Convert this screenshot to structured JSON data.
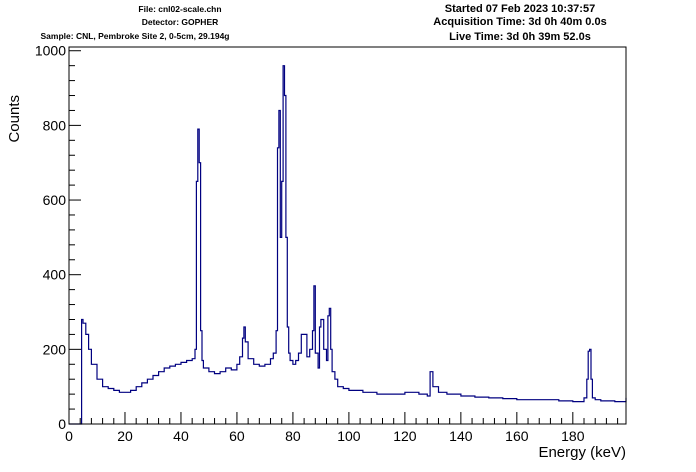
{
  "header": {
    "file": "File: cnl02-scale.chn",
    "detector": "Detector: GOPHER",
    "sample": "Sample: CNL, Pembroke Site 2, 0-5cm, 29.194g",
    "started": "Started 07 Feb 2023 10:37:57",
    "acquisition": "Acquisition Time: 3d 0h 40m 0.0s",
    "live": "Live Time: 3d 0h 39m 52.0s"
  },
  "colors": {
    "histogram": "#000080",
    "axis": "#000000"
  },
  "chart_data": {
    "type": "line",
    "style": "step histogram",
    "title": "",
    "xlabel": "Energy (keV)",
    "ylabel": "Counts",
    "xlim": [
      0,
      199
    ],
    "ylim": [
      0,
      1010
    ],
    "x_ticks": [
      0,
      20,
      40,
      60,
      80,
      100,
      120,
      140,
      160,
      180
    ],
    "y_ticks": [
      0,
      200,
      400,
      600,
      800,
      1000
    ],
    "grid": false,
    "series": [
      {
        "x": [
          0,
          4,
          4.5,
          5,
          6,
          7,
          8,
          10,
          12,
          14,
          16,
          18,
          20,
          22,
          24,
          26,
          28,
          30,
          32,
          34,
          36,
          38,
          40,
          42,
          44,
          45,
          45.5,
          46,
          46.5,
          47,
          47.5,
          48,
          50,
          52,
          54,
          56,
          58,
          60,
          61,
          62,
          62.5,
          63,
          64,
          66,
          68,
          70,
          72,
          73,
          74,
          74.5,
          75,
          75.5,
          76,
          76.5,
          77,
          77.5,
          78,
          78.5,
          79,
          80,
          81,
          82,
          83,
          84,
          85,
          86,
          87,
          87.5,
          88,
          89,
          89.5,
          90,
          91,
          92,
          92.5,
          93,
          93.5,
          94,
          95,
          96,
          98,
          100,
          105,
          110,
          115,
          120,
          125,
          128,
          129,
          130,
          132,
          135,
          140,
          145,
          150,
          155,
          160,
          165,
          170,
          175,
          180,
          184,
          185,
          185.5,
          186,
          186.5,
          187,
          188,
          190,
          195,
          199
        ],
        "y": [
          0,
          0,
          280,
          270,
          240,
          200,
          160,
          120,
          100,
          95,
          90,
          85,
          85,
          90,
          100,
          110,
          120,
          130,
          140,
          150,
          155,
          160,
          165,
          170,
          175,
          200,
          650,
          790,
          700,
          250,
          170,
          150,
          140,
          135,
          140,
          150,
          145,
          160,
          180,
          230,
          260,
          220,
          175,
          160,
          155,
          160,
          175,
          190,
          250,
          740,
          840,
          500,
          650,
          960,
          880,
          500,
          260,
          190,
          170,
          160,
          170,
          190,
          240,
          240,
          180,
          200,
          250,
          370,
          190,
          150,
          260,
          280,
          200,
          170,
          290,
          310,
          200,
          140,
          120,
          100,
          95,
          90,
          85,
          80,
          80,
          85,
          80,
          75,
          140,
          100,
          85,
          80,
          75,
          72,
          70,
          68,
          65,
          65,
          65,
          62,
          60,
          70,
          120,
          195,
          200,
          120,
          70,
          65,
          62,
          60,
          70
        ]
      }
    ]
  }
}
